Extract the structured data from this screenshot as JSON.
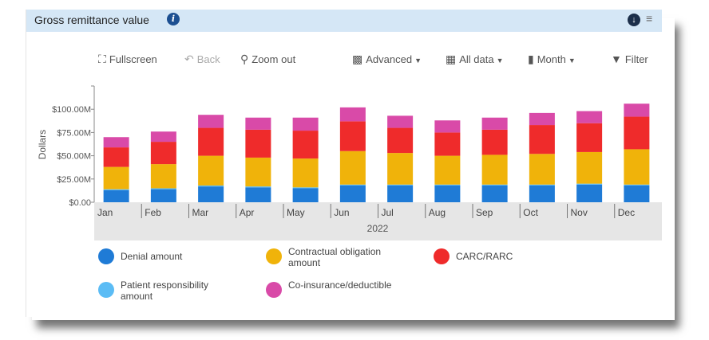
{
  "panel": {
    "title": "Gross remittance value",
    "info_icon": "info-icon",
    "download_icon": "download-icon",
    "menu_icon": "hamburger-menu-icon"
  },
  "toolbar": {
    "fullscreen": "Fullscreen",
    "back": "Back",
    "zoom_out": "Zoom out",
    "advanced": "Advanced",
    "all_data": "All data",
    "month": "Month",
    "filter": "Filter"
  },
  "colors": {
    "denial": "#1f7bd6",
    "contractual": "#f0b30a",
    "carc": "#ef2b2b",
    "patient": "#5bbcf5",
    "coins": "#d94aa8",
    "axis_band": "#e6e6e6"
  },
  "chart_data": {
    "type": "bar",
    "stacked": true,
    "categories": [
      "Jan",
      "Feb",
      "Mar",
      "Apr",
      "May",
      "Jun",
      "Jul",
      "Aug",
      "Sep",
      "Oct",
      "Nov",
      "Dec"
    ],
    "x_group_label": "2022",
    "ylabel": "Dollars",
    "yticks": [
      "$0.00",
      "$25.00M",
      "$50.00M",
      "$75.00M",
      "$100.00M"
    ],
    "ylim": [
      0,
      125
    ],
    "series": [
      {
        "name": "Denial amount",
        "color": "#1f7bd6",
        "values": [
          13,
          14,
          17,
          16,
          15,
          18,
          18,
          18,
          18,
          18,
          19,
          18
        ]
      },
      {
        "name": "Patient responsibility amount",
        "color": "#5bbcf5",
        "values": [
          1,
          1,
          1,
          1,
          1,
          1,
          1,
          1,
          1,
          1,
          1,
          1
        ]
      },
      {
        "name": "Contractual obligation amount",
        "color": "#f0b30a",
        "values": [
          24,
          26,
          32,
          31,
          31,
          36,
          34,
          31,
          32,
          33,
          34,
          38
        ]
      },
      {
        "name": "CARC/RARC",
        "color": "#ef2b2b",
        "values": [
          21,
          24,
          30,
          30,
          30,
          32,
          27,
          25,
          27,
          31,
          31,
          35
        ]
      },
      {
        "name": "Co-insurance/deductible",
        "color": "#d94aa8",
        "values": [
          11,
          11,
          14,
          13,
          14,
          15,
          13,
          13,
          13,
          13,
          13,
          14
        ]
      }
    ],
    "legend": [
      {
        "label": "Denial amount",
        "color": "#1f7bd6"
      },
      {
        "label": "Contractual obligation amount",
        "color": "#f0b30a"
      },
      {
        "label": "CARC/RARC",
        "color": "#ef2b2b"
      },
      {
        "label": "Patient responsibility amount",
        "color": "#5bbcf5"
      },
      {
        "label": "Co-insurance/deductible",
        "color": "#d94aa8"
      }
    ],
    "legend_placement": "bottom"
  }
}
